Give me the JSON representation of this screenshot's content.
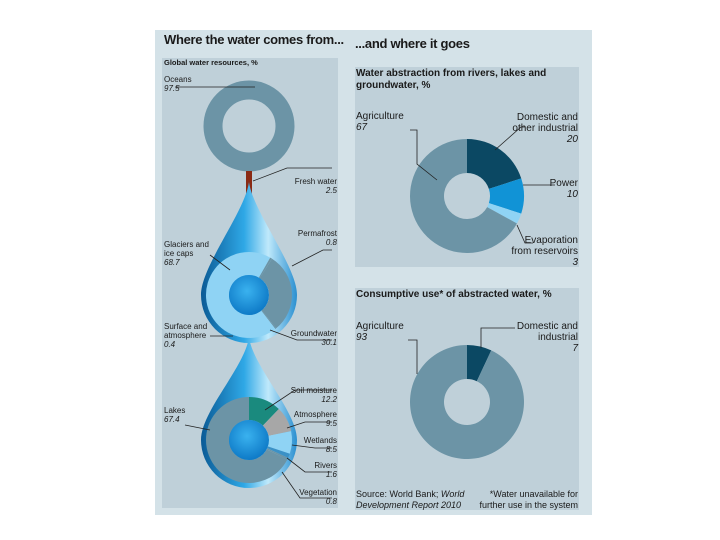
{
  "chart_data": [
    {
      "type": "pie",
      "title": "Where the water comes from...",
      "subtitle": "Global water resources, %",
      "slices": [
        {
          "label": "Oceans",
          "value": 97.5
        },
        {
          "label": "Fresh water",
          "value": 2.5
        }
      ]
    },
    {
      "type": "pie",
      "title": "Fresh water",
      "slices": [
        {
          "label": "Glaciers and ice caps",
          "value": 68.7
        },
        {
          "label": "Permafrost",
          "value": 0.8
        },
        {
          "label": "Groundwater",
          "value": 30.1
        },
        {
          "label": "Surface and atmosphere",
          "value": 0.4
        }
      ]
    },
    {
      "type": "pie",
      "title": "Surface and atmosphere",
      "slices": [
        {
          "label": "Lakes",
          "value": 67.4
        },
        {
          "label": "Soil moisture",
          "value": 12.2
        },
        {
          "label": "Atmosphere",
          "value": 9.5
        },
        {
          "label": "Wetlands",
          "value": 8.5
        },
        {
          "label": "Rivers",
          "value": 1.6
        },
        {
          "label": "Vegetation",
          "value": 0.8
        }
      ]
    },
    {
      "type": "pie",
      "title": "...and where it goes",
      "subtitle": "Water abstraction from rivers, lakes and groundwater, %",
      "slices": [
        {
          "label": "Agriculture",
          "value": 67
        },
        {
          "label": "Domestic and other industrial",
          "value": 20
        },
        {
          "label": "Power",
          "value": 10
        },
        {
          "label": "Evaporation from reservoirs",
          "value": 3
        }
      ]
    },
    {
      "type": "pie",
      "subtitle": "Consumptive use* of abstracted water, %",
      "slices": [
        {
          "label": "Agriculture",
          "value": 93
        },
        {
          "label": "Domestic and industrial",
          "value": 7
        }
      ]
    }
  ],
  "colors": {
    "slate": "#6c94a6",
    "navy": "#0b4863",
    "blue": "#1193d6",
    "lightblue": "#8fd3f4",
    "teal": "#1a8a7e",
    "grey": "#a7a7a7",
    "stem": "#8a2a14",
    "lake_blue": "#3b91c6"
  },
  "text": {
    "left_title": "Where the water comes from...",
    "right_title": "...and where it goes",
    "left_sub": "Global water resources, %",
    "oceans": "Oceans",
    "oceans_v": "97.5",
    "fresh": "Fresh water",
    "fresh_v": "2.5",
    "glaciers_1": "Glaciers and",
    "glaciers_2": "ice caps",
    "glaciers_v": "68.7",
    "permafrost": "Permafrost",
    "permafrost_v": "0.8",
    "groundwater": "Groundwater",
    "groundwater_v": "30.1",
    "surface_1": "Surface and",
    "surface_2": "atmosphere",
    "surface_v": "0.4",
    "soil": "Soil moisture",
    "soil_v": "12.2",
    "atmosphere": "Atmosphere",
    "atmosphere_v": "9.5",
    "wetlands": "Wetlands",
    "wetlands_v": "8.5",
    "rivers": "Rivers",
    "rivers_v": "1.6",
    "lakes": "Lakes",
    "lakes_v": "67.4",
    "vegetation": "Vegetation",
    "vegetation_v": "0.8",
    "abs_title_1": "Water abstraction from rivers, lakes and",
    "abs_title_2": "groundwater, %",
    "agri": "Agriculture",
    "agri_v": "67",
    "dom_1": "Domestic and",
    "dom_2": "other industrial",
    "dom_v": "20",
    "power": "Power",
    "power_v": "10",
    "evap_1": "Evaporation",
    "evap_2": "from reservoirs",
    "evap_v": "3",
    "cons_title": "Consumptive use* of abstracted water, %",
    "agri2": "Agriculture",
    "agri2_v": "93",
    "dom2_1": "Domestic and",
    "dom2_2": "industrial",
    "dom2_v": "7",
    "source_1": "Source: World Bank;",
    "source_1b": "World",
    "source_2": "Development Report 2010",
    "note_1": "*Water unavailable for",
    "note_2": "further use in the system"
  }
}
